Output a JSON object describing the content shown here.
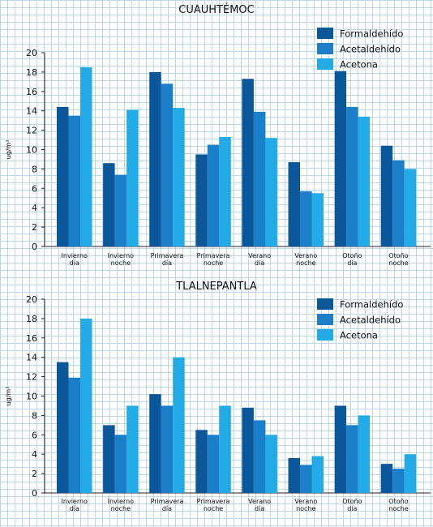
{
  "chart_data": [
    {
      "type": "bar",
      "title": "CUAUHTÉMOC",
      "ylabel": "ug/m³",
      "xlabel": "",
      "ylim": [
        0,
        20
      ],
      "yticks": [
        "0",
        "2",
        "4",
        "6",
        "8",
        "10",
        "12",
        "14",
        "16",
        "18",
        "20"
      ],
      "categories": [
        [
          "Invierno",
          "día"
        ],
        [
          "Invierno",
          "noche"
        ],
        [
          "Primavera",
          "día"
        ],
        [
          "Primavera",
          "noche"
        ],
        [
          "Verano",
          "día"
        ],
        [
          "Verano",
          "noche"
        ],
        [
          "Otoño",
          "día"
        ],
        [
          "Otoño",
          "noche"
        ]
      ],
      "series": [
        {
          "name": "Formaldehído",
          "color": "#0a5799",
          "values": [
            14.4,
            8.6,
            18.0,
            9.5,
            17.3,
            8.7,
            18.1,
            10.4
          ]
        },
        {
          "name": "Acetaldehído",
          "color": "#1a7fc8",
          "values": [
            13.5,
            7.4,
            16.8,
            10.5,
            13.9,
            5.7,
            14.4,
            8.9
          ]
        },
        {
          "name": "Acetona",
          "color": "#22abe6",
          "values": [
            18.5,
            14.1,
            14.3,
            11.3,
            11.2,
            5.5,
            13.4,
            8.0
          ]
        }
      ],
      "legend": "top-right",
      "grid": false
    },
    {
      "type": "bar",
      "title": "TLALNEPANTLA",
      "ylabel": "ug/m³",
      "xlabel": "",
      "ylim": [
        0,
        20
      ],
      "yticks": [
        "0",
        "2",
        "4",
        "6",
        "8",
        "10",
        "12",
        "14",
        "16",
        "18",
        "20"
      ],
      "categories": [
        [
          "Invierno",
          "día"
        ],
        [
          "Invierno",
          "noche"
        ],
        [
          "Primavera",
          "día"
        ],
        [
          "Primavera",
          "noche"
        ],
        [
          "Verano",
          "día"
        ],
        [
          "Verano",
          "noche"
        ],
        [
          "Otoño",
          "día"
        ],
        [
          "Otoño",
          "noche"
        ]
      ],
      "series": [
        {
          "name": "Formaldehído",
          "color": "#0a5799",
          "values": [
            13.5,
            7.0,
            10.2,
            6.5,
            8.8,
            3.6,
            9.0,
            3.0
          ]
        },
        {
          "name": "Acetaldehído",
          "color": "#1a7fc8",
          "values": [
            11.9,
            6.0,
            9.0,
            6.0,
            7.5,
            2.9,
            7.0,
            2.5
          ]
        },
        {
          "name": "Acetona",
          "color": "#22abe6",
          "values": [
            18.0,
            9.0,
            14.0,
            9.0,
            6.0,
            3.8,
            8.0,
            4.0
          ]
        }
      ],
      "legend": "top-right",
      "grid": false
    }
  ]
}
